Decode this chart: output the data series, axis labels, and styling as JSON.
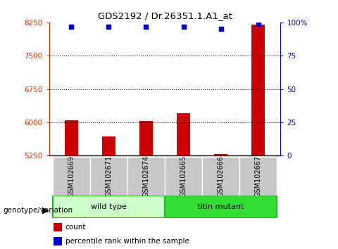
{
  "title": "GDS2192 / Dr.26351.1.A1_at",
  "samples": [
    "GSM102669",
    "GSM102671",
    "GSM102674",
    "GSM102665",
    "GSM102666",
    "GSM102667"
  ],
  "counts": [
    6050,
    5680,
    6030,
    6200,
    5290,
    8200
  ],
  "percentile_ranks": [
    97,
    97,
    97,
    97,
    95,
    99
  ],
  "left_ylim": [
    5250,
    8250
  ],
  "left_yticks": [
    5250,
    6000,
    6750,
    7500,
    8250
  ],
  "right_ylim": [
    0,
    100
  ],
  "right_yticks": [
    0,
    25,
    50,
    75,
    100
  ],
  "left_color": "#cc3300",
  "right_color": "#0000cc",
  "bar_color": "#cc0000",
  "dot_color": "#0000cc",
  "bg_color": "#c8c8c8",
  "wild_type_color": "#ccffcc",
  "titin_mutant_color": "#33dd33",
  "legend_count_label": "count",
  "legend_pct_label": "percentile rank within the sample",
  "genotype_label": "genotype/variation"
}
